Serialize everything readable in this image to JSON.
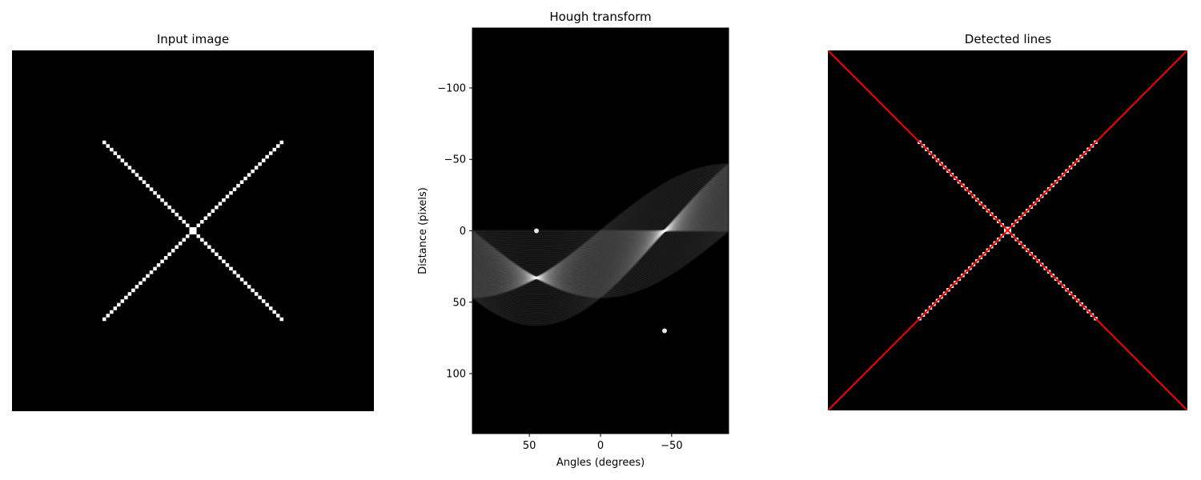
{
  "figure": {
    "panels": [
      {
        "title": "Input image"
      },
      {
        "title": "Hough transform"
      },
      {
        "title": "Detected lines"
      }
    ]
  },
  "chart_data": [
    {
      "type": "image",
      "title": "Input image",
      "image_size": [
        100,
        100
      ],
      "description_values": {
        "lines": [
          {
            "from": [
              25,
              25
            ],
            "to": [
              74,
              74
            ]
          },
          {
            "from": [
              25,
              74
            ],
            "to": [
              74,
              25
            ]
          }
        ]
      },
      "axes_visible": false
    },
    {
      "type": "heatmap",
      "title": "Hough transform",
      "xlabel": "Angles (degrees)",
      "ylabel": "Distance (pixels)",
      "xlim": [
        90,
        -90
      ],
      "ylim": [
        -142,
        142
      ],
      "xticks": [
        50,
        0,
        -50
      ],
      "xtick_labels": [
        "50",
        "0",
        "−50"
      ],
      "yticks": [
        -100,
        -50,
        0,
        50,
        100
      ],
      "ytick_labels": [
        "−100",
        "−50",
        "0",
        "50",
        "100"
      ],
      "peaks": [
        {
          "angle": 45,
          "distance": 0
        },
        {
          "angle": -45,
          "distance": 70
        }
      ],
      "colormap": "gray"
    },
    {
      "type": "image",
      "title": "Detected lines",
      "image_size": [
        100,
        100
      ],
      "detected_lines": [
        {
          "angle": 45,
          "distance": 0,
          "color": "#ff0000"
        },
        {
          "angle": -45,
          "distance": 70,
          "color": "#ff0000"
        }
      ],
      "axes_visible": false
    }
  ],
  "colors": {
    "line": "#ff0000",
    "pixel": "#ffffff",
    "background": "#000000"
  }
}
